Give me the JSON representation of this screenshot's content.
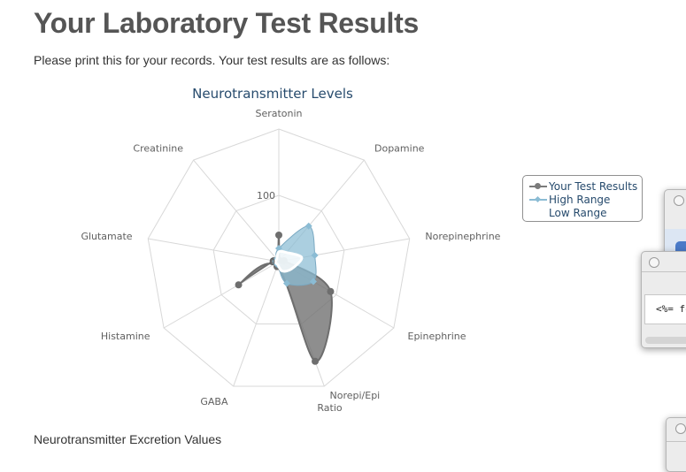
{
  "page": {
    "title": "Your Laboratory Test Results",
    "intro": "Please print this for your records. Your test results are as follows:",
    "section_heading": "Neurotransmitter Excretion Values"
  },
  "legend": {
    "items": [
      {
        "label": "Your Test Results",
        "color": "#7b7b7b"
      },
      {
        "label": "High Range",
        "color": "#8bbcd4"
      },
      {
        "label": "Low Range",
        "color": "#ffffff"
      }
    ]
  },
  "background_window": {
    "code_snippet": "<%= fo"
  },
  "chart_data": {
    "type": "radar",
    "title": "Neurotransmitter Levels",
    "categories": [
      "Seratonin",
      "Dopamine",
      "Norepinephrine",
      "Epinephrine",
      "Norepi/Epi Ratio",
      "GABA",
      "Histamine",
      "Glutamate",
      "Creatinine"
    ],
    "category_display": [
      [
        "Seratonin"
      ],
      [
        "Dopamine"
      ],
      [
        "Norepinephrine"
      ],
      [
        "Epinephrine"
      ],
      [
        "Norepi/Epi",
        "Ratio"
      ],
      [
        "GABA"
      ],
      [
        "Histamine"
      ],
      [
        "Glutamate"
      ],
      [
        "Creatinine"
      ]
    ],
    "radial_ticks": [
      "0",
      "100"
    ],
    "rmax": 200,
    "grid": true,
    "legend_position": "right",
    "series": [
      {
        "name": "Your Test Results",
        "type": "area",
        "color": "#7b7b7b",
        "values": [
          40,
          2,
          8,
          90,
          160,
          8,
          70,
          8,
          3
        ]
      },
      {
        "name": "High Range",
        "type": "area",
        "color": "#8bbcd4",
        "values": [
          20,
          70,
          55,
          60,
          35,
          5,
          5,
          5,
          5
        ]
      },
      {
        "name": "Low Range",
        "type": "area",
        "color": "#ffffff",
        "values": [
          15,
          18,
          35,
          22,
          15,
          5,
          5,
          5,
          5
        ]
      }
    ]
  }
}
